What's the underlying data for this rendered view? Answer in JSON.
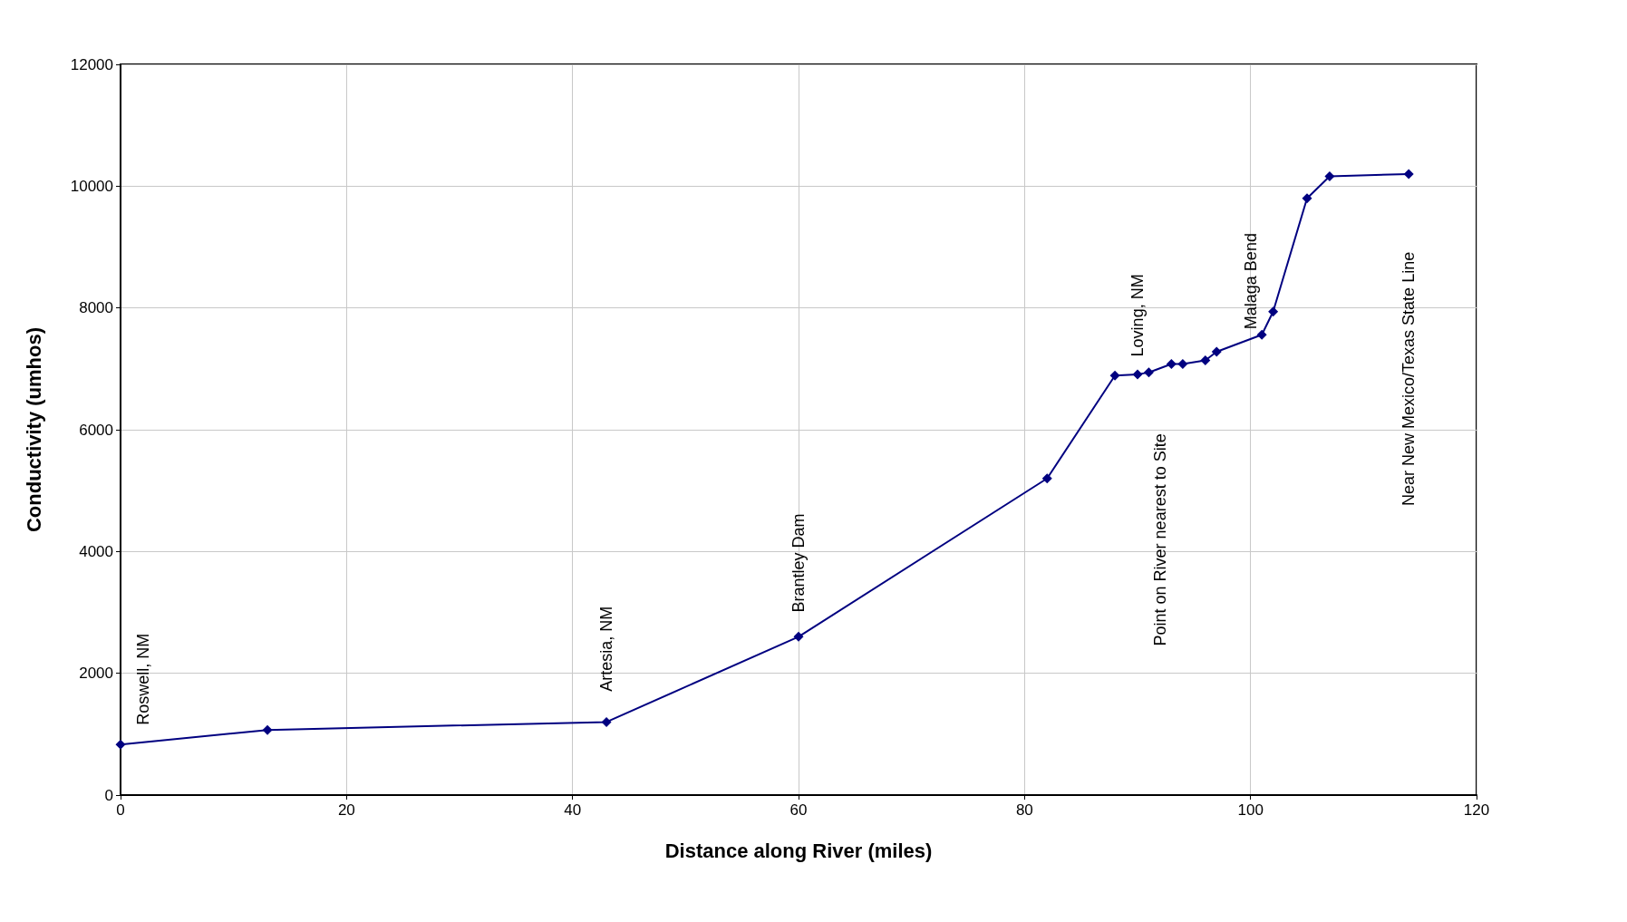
{
  "chart_data": {
    "type": "line",
    "xlabel": "Distance along River (miles)",
    "ylabel": "Conductivity (umhos)",
    "x": [
      0,
      13,
      43,
      60,
      82,
      88,
      90,
      91,
      93,
      94,
      96,
      97,
      101,
      102,
      105,
      107,
      114
    ],
    "series": [
      {
        "color": "#000080",
        "values": [
          830,
          1070,
          1200,
          2600,
          5200,
          6890,
          6910,
          6940,
          7080,
          7080,
          7140,
          7280,
          7560,
          7940,
          9800,
          10160,
          10200
        ]
      }
    ],
    "xlim": [
      0,
      120
    ],
    "xticks": [
      0,
      20,
      40,
      60,
      80,
      100,
      120
    ],
    "ylim": [
      0,
      12000
    ],
    "yticks": [
      0,
      2000,
      4000,
      6000,
      8000,
      10000,
      12000
    ],
    "grid": true,
    "marker": "diamond",
    "line_style": "solid",
    "annotations": [
      "Roswell, NM",
      "Artesia, NM",
      "Brantley Dam",
      "Loving, NM",
      "Point on River nearest to Site",
      "Malaga Bend",
      "Near New Mexico/Texas State Line"
    ]
  }
}
